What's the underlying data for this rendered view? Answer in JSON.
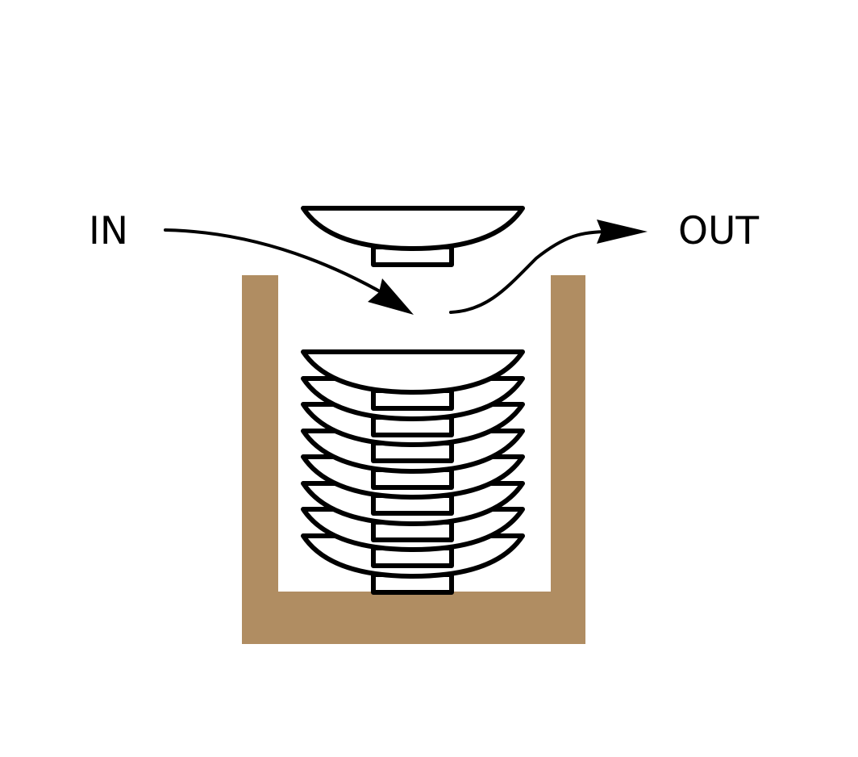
{
  "labels": {
    "in": "IN",
    "out": "OUT"
  },
  "colors": {
    "container": "#B08D62",
    "background": "#FFFFFF",
    "stroke": "#000000"
  },
  "stack": {
    "plate_count": 8
  }
}
